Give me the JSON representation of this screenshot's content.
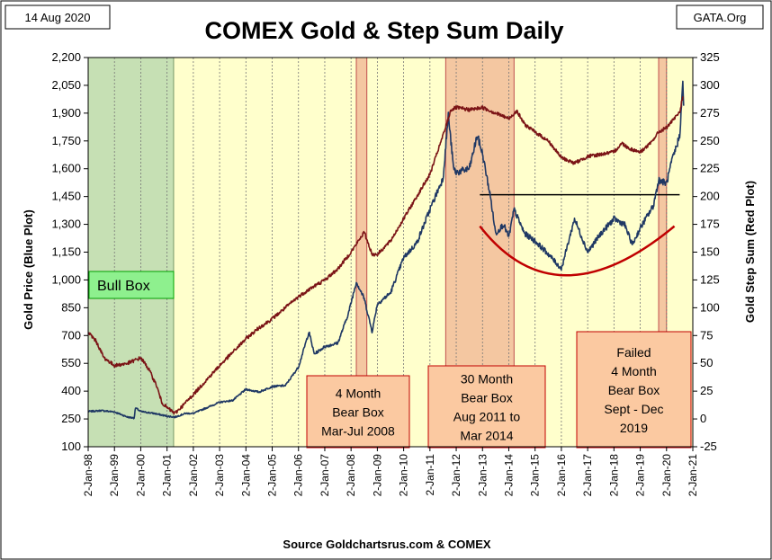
{
  "header": {
    "date_label": "14 Aug 2020",
    "title": "COMEX Gold & Step Sum Daily",
    "brand": "GATA.Org"
  },
  "source_label": "Source Goldchartsrus.com & COMEX",
  "colors": {
    "plot_bg": "#ffffcc",
    "gold_line": "#1f3864",
    "stepsum_line": "#7b1416",
    "bull_fill": "#c6e0b4",
    "bear_fill": "#f4c7a1",
    "label_fill": "#fbc9a1",
    "label_border": "#c00000",
    "bull_label_fill": "#8ef08e",
    "bull_label_border": "#00a000",
    "resistance_line": "#000000",
    "bowl_curve": "#c00000"
  },
  "chart_data": {
    "type": "line",
    "title": "COMEX Gold & Step Sum Daily",
    "ylabel_left": "Gold Price   (Blue Plot)",
    "ylabel_right": "Gold Step Sum   (Red Plot)",
    "xlim": [
      "1998-01-02",
      "2021-01-02"
    ],
    "ylim_left": [
      100,
      2200
    ],
    "ylim_right": [
      -25,
      325
    ],
    "y_ticks_left": [
      "100",
      "250",
      "400",
      "550",
      "700",
      "850",
      "1,000",
      "1,150",
      "1,300",
      "1,450",
      "1,600",
      "1,750",
      "1,900",
      "2,050",
      "2,200"
    ],
    "y_ticks_right": [
      "-25",
      "0",
      "25",
      "50",
      "75",
      "100",
      "125",
      "150",
      "175",
      "200",
      "225",
      "250",
      "275",
      "300",
      "325"
    ],
    "x_ticks": [
      "2-Jan-98",
      "2-Jan-99",
      "2-Jan-00",
      "2-Jan-01",
      "2-Jan-02",
      "2-Jan-03",
      "2-Jan-04",
      "2-Jan-05",
      "2-Jan-06",
      "2-Jan-07",
      "2-Jan-08",
      "2-Jan-09",
      "2-Jan-10",
      "2-Jan-11",
      "2-Jan-12",
      "2-Jan-13",
      "2-Jan-14",
      "2-Jan-15",
      "2-Jan-16",
      "2-Jan-17",
      "2-Jan-18",
      "2-Jan-19",
      "2-Jan-20",
      "2-Jan-21"
    ],
    "grid": "vertical",
    "series": [
      {
        "name": "Gold Price",
        "axis": "left",
        "points": [
          [
            1998.0,
            290
          ],
          [
            1998.5,
            295
          ],
          [
            1999.0,
            288
          ],
          [
            1999.5,
            260
          ],
          [
            1999.75,
            255
          ],
          [
            1999.8,
            310
          ],
          [
            2000.0,
            290
          ],
          [
            2000.5,
            280
          ],
          [
            2001.0,
            265
          ],
          [
            2001.3,
            260
          ],
          [
            2001.7,
            280
          ],
          [
            2002.0,
            280
          ],
          [
            2002.5,
            310
          ],
          [
            2003.0,
            340
          ],
          [
            2003.5,
            350
          ],
          [
            2004.0,
            410
          ],
          [
            2004.5,
            395
          ],
          [
            2005.0,
            425
          ],
          [
            2005.5,
            430
          ],
          [
            2006.0,
            530
          ],
          [
            2006.4,
            720
          ],
          [
            2006.6,
            600
          ],
          [
            2007.0,
            640
          ],
          [
            2007.5,
            660
          ],
          [
            2007.9,
            820
          ],
          [
            2008.2,
            990
          ],
          [
            2008.5,
            900
          ],
          [
            2008.8,
            720
          ],
          [
            2009.0,
            870
          ],
          [
            2009.5,
            930
          ],
          [
            2010.0,
            1120
          ],
          [
            2010.5,
            1200
          ],
          [
            2011.0,
            1380
          ],
          [
            2011.5,
            1550
          ],
          [
            2011.7,
            1890
          ],
          [
            2011.9,
            1600
          ],
          [
            2012.0,
            1580
          ],
          [
            2012.5,
            1600
          ],
          [
            2012.8,
            1780
          ],
          [
            2013.0,
            1680
          ],
          [
            2013.3,
            1450
          ],
          [
            2013.5,
            1250
          ],
          [
            2013.8,
            1300
          ],
          [
            2014.0,
            1230
          ],
          [
            2014.2,
            1380
          ],
          [
            2014.6,
            1250
          ],
          [
            2015.0,
            1210
          ],
          [
            2015.5,
            1140
          ],
          [
            2016.0,
            1060
          ],
          [
            2016.5,
            1330
          ],
          [
            2017.0,
            1150
          ],
          [
            2017.5,
            1250
          ],
          [
            2018.0,
            1330
          ],
          [
            2018.4,
            1300
          ],
          [
            2018.7,
            1190
          ],
          [
            2019.0,
            1280
          ],
          [
            2019.5,
            1400
          ],
          [
            2019.7,
            1540
          ],
          [
            2020.0,
            1520
          ],
          [
            2020.2,
            1640
          ],
          [
            2020.4,
            1730
          ],
          [
            2020.5,
            1780
          ],
          [
            2020.62,
            2060
          ],
          [
            2020.65,
            1940
          ]
        ]
      },
      {
        "name": "Gold Step Sum",
        "axis": "right",
        "points": [
          [
            1998.0,
            78
          ],
          [
            1998.3,
            70
          ],
          [
            1998.6,
            55
          ],
          [
            1999.0,
            48
          ],
          [
            1999.5,
            50
          ],
          [
            2000.0,
            55
          ],
          [
            2000.3,
            45
          ],
          [
            2000.6,
            30
          ],
          [
            2000.8,
            15
          ],
          [
            2001.0,
            10
          ],
          [
            2001.3,
            5
          ],
          [
            2001.6,
            12
          ],
          [
            2002.0,
            22
          ],
          [
            2002.5,
            35
          ],
          [
            2003.0,
            48
          ],
          [
            2003.5,
            60
          ],
          [
            2004.0,
            72
          ],
          [
            2004.5,
            82
          ],
          [
            2005.0,
            90
          ],
          [
            2005.5,
            100
          ],
          [
            2006.0,
            110
          ],
          [
            2006.5,
            118
          ],
          [
            2007.0,
            125
          ],
          [
            2007.5,
            135
          ],
          [
            2008.0,
            150
          ],
          [
            2008.5,
            168
          ],
          [
            2008.8,
            148
          ],
          [
            2009.0,
            148
          ],
          [
            2009.5,
            160
          ],
          [
            2010.0,
            180
          ],
          [
            2010.5,
            200
          ],
          [
            2011.0,
            220
          ],
          [
            2011.5,
            255
          ],
          [
            2011.8,
            278
          ],
          [
            2012.0,
            280
          ],
          [
            2012.5,
            278
          ],
          [
            2013.0,
            280
          ],
          [
            2013.5,
            275
          ],
          [
            2014.0,
            270
          ],
          [
            2014.3,
            277
          ],
          [
            2014.6,
            265
          ],
          [
            2015.0,
            258
          ],
          [
            2015.5,
            250
          ],
          [
            2016.0,
            235
          ],
          [
            2016.5,
            230
          ],
          [
            2017.0,
            236
          ],
          [
            2017.5,
            238
          ],
          [
            2018.0,
            240
          ],
          [
            2018.3,
            248
          ],
          [
            2018.6,
            243
          ],
          [
            2019.0,
            240
          ],
          [
            2019.4,
            248
          ],
          [
            2019.7,
            258
          ],
          [
            2020.0,
            262
          ],
          [
            2020.3,
            270
          ],
          [
            2020.5,
            276
          ],
          [
            2020.62,
            290
          ]
        ]
      }
    ],
    "zones": [
      {
        "kind": "bull",
        "start": 1998.0,
        "end": 2001.25
      },
      {
        "kind": "bear",
        "start": 2008.2,
        "end": 2008.6
      },
      {
        "kind": "bear",
        "start": 2011.6,
        "end": 2014.2
      },
      {
        "kind": "bear",
        "start": 2019.7,
        "end": 2020.0
      }
    ],
    "annotations": [
      {
        "lines": [
          "Bull Box"
        ],
        "kind": "bull"
      },
      {
        "lines": [
          "4 Month",
          "Bear Box",
          "Mar-Jul 2008"
        ],
        "kind": "bear"
      },
      {
        "lines": [
          "30 Month",
          "Bear Box",
          "Aug 2011 to",
          "Mar 2014"
        ],
        "kind": "bear"
      },
      {
        "lines": [
          "Failed",
          "4 Month",
          "Bear Box",
          "Sept - Dec",
          "2019"
        ],
        "kind": "bear"
      }
    ],
    "reference_lines": [
      {
        "kind": "horizontal",
        "axis": "left",
        "y": 1460,
        "x_start": 2012.9,
        "x_end": 2020.5
      },
      {
        "kind": "curve",
        "axis": "left",
        "points": [
          [
            2012.9,
            1290
          ],
          [
            2016.2,
            1025
          ],
          [
            2020.3,
            1290
          ]
        ]
      }
    ]
  }
}
